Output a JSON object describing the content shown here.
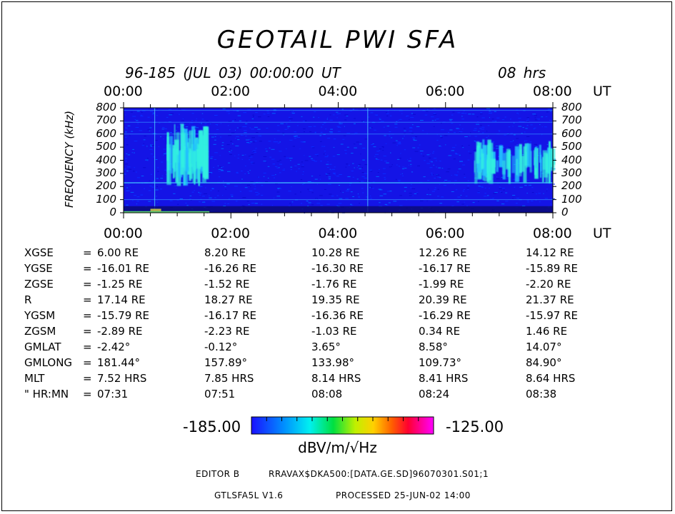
{
  "title": "GEOTAIL PWI SFA",
  "subtitle": "96-185 (JUL 03) 00:00:00 UT",
  "duration": "08 hrs",
  "time_ticks": [
    "00:00",
    "02:00",
    "04:00",
    "06:00",
    "08:00"
  ],
  "time_unit": "UT",
  "chart_data": {
    "type": "heatmap",
    "ylabel": "FREQUENCY (kHz)",
    "x_range_hours": [
      0,
      8
    ],
    "y_range_khz": [
      0,
      800
    ],
    "y_ticks": [
      "800",
      "700",
      "600",
      "500",
      "400",
      "300",
      "200",
      "100",
      "0"
    ],
    "colorscale": {
      "min_label": "-185.00",
      "max_label": "-125.00",
      "units": "dBV/m/√Hz",
      "min": -185,
      "max": -125
    },
    "features": [
      {
        "t_start_h": 0.8,
        "t_end_h": 1.5,
        "f_low_khz": 200,
        "f_high_khz": 680,
        "level": "high"
      },
      {
        "t_start_h": 6.5,
        "t_end_h": 8.0,
        "f_low_khz": 220,
        "f_high_khz": 560,
        "level": "high"
      },
      {
        "t_start_h": 0.0,
        "t_end_h": 8.0,
        "f_low_khz": 0,
        "f_high_khz": 50,
        "level": "high"
      }
    ]
  },
  "ephemeris": {
    "rows": [
      {
        "label": "XGSE",
        "values": [
          "6.00 RE",
          "8.20 RE",
          "10.28 RE",
          "12.26 RE",
          "14.12 RE"
        ]
      },
      {
        "label": "YGSE",
        "values": [
          "-16.01 RE",
          "-16.26 RE",
          "-16.30 RE",
          "-16.17 RE",
          "-15.89 RE"
        ]
      },
      {
        "label": "ZGSE",
        "values": [
          "-1.25 RE",
          "-1.52 RE",
          "-1.76 RE",
          "-1.99 RE",
          "-2.20 RE"
        ]
      },
      {
        "label": "R",
        "values": [
          "17.14 RE",
          "18.27 RE",
          "19.35 RE",
          "20.39 RE",
          "21.37 RE"
        ]
      },
      {
        "label": "YGSM",
        "values": [
          "-15.79 RE",
          "-16.17 RE",
          "-16.36 RE",
          "-16.29 RE",
          "-15.97 RE"
        ]
      },
      {
        "label": "ZGSM",
        "values": [
          "-2.89 RE",
          "-2.23 RE",
          "-1.03 RE",
          "0.34 RE",
          "1.46 RE"
        ]
      },
      {
        "label": "GMLAT",
        "values": [
          "-2.42°",
          "-0.12°",
          "3.65°",
          "8.58°",
          "14.07°"
        ]
      },
      {
        "label": "GMLONG",
        "values": [
          "181.44°",
          "157.89°",
          "133.98°",
          "109.73°",
          "84.90°"
        ]
      },
      {
        "label": "MLT",
        "values": [
          "7.52 HRS",
          "7.85 HRS",
          "8.14 HRS",
          "8.41 HRS",
          "8.64 HRS"
        ]
      },
      {
        "label": "\" HR:MN",
        "values": [
          "07:31",
          "07:51",
          "08:08",
          "08:24",
          "08:38"
        ]
      }
    ]
  },
  "footer": {
    "editor": "EDITOR B",
    "file": "RRAVAX$DKA500:[DATA.GE.SD]96070301.S01;1",
    "program": "GTLSFA5L V1.6",
    "processed": "PROCESSED 25-JUN-02 14:00"
  }
}
